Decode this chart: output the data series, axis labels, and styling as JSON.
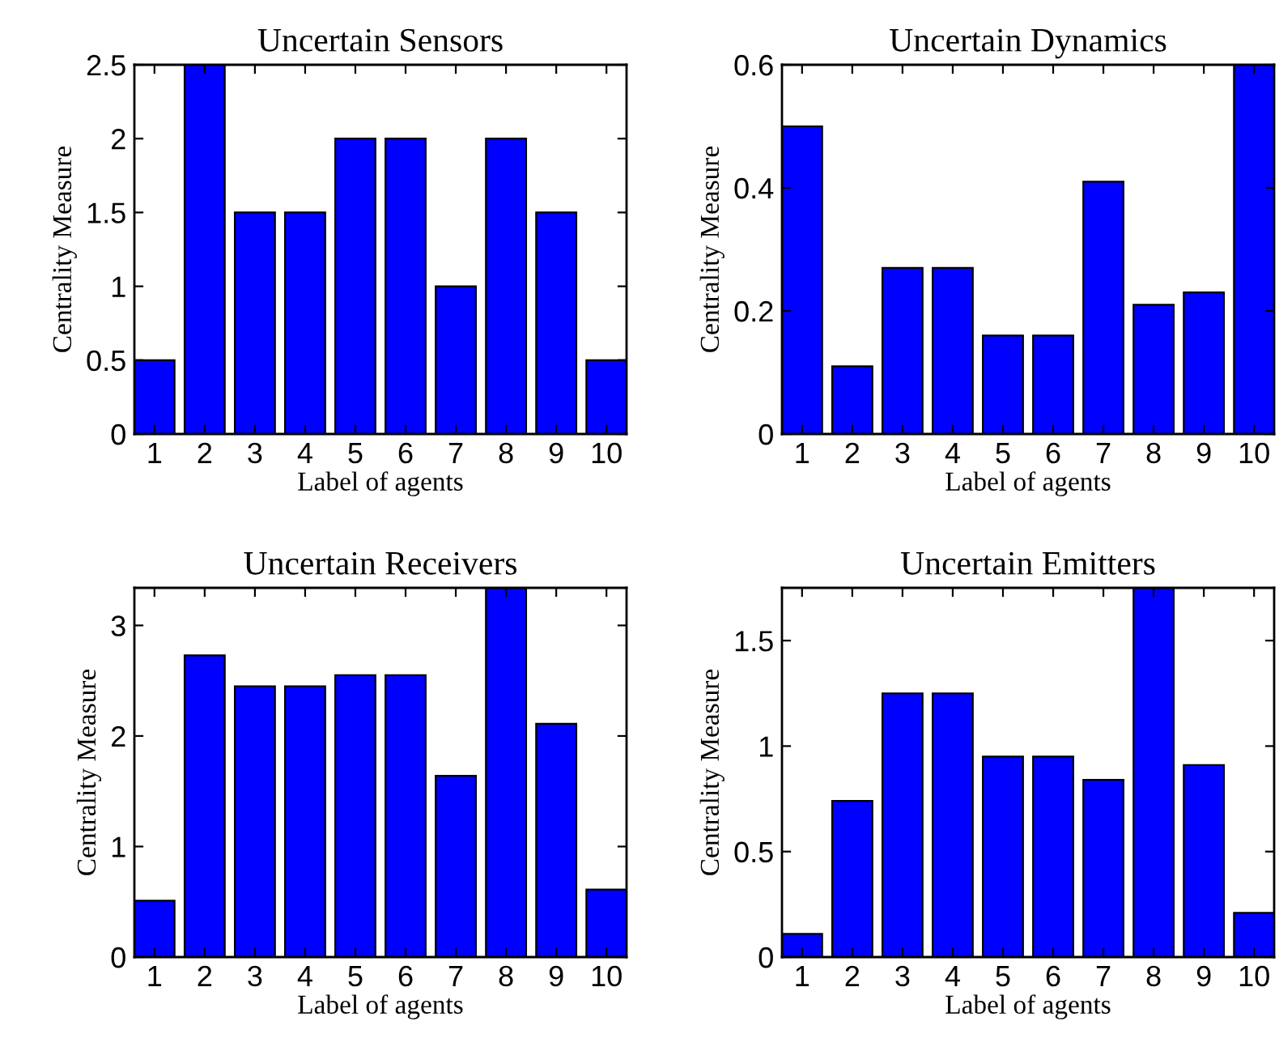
{
  "chart_data": [
    {
      "type": "bar",
      "title": "Uncertain Sensors",
      "xlabel": "Label of agents",
      "ylabel": "Centrality Measure",
      "categories": [
        "1",
        "2",
        "3",
        "4",
        "5",
        "6",
        "7",
        "8",
        "9",
        "10"
      ],
      "values": [
        0.5,
        2.5,
        1.5,
        1.5,
        2,
        2,
        1,
        2,
        1.5,
        0.5
      ],
      "color": "#0000ff",
      "ylim": [
        0,
        2.5
      ],
      "yticks": [
        0,
        0.5,
        1,
        1.5,
        2,
        2.5
      ],
      "grid": false,
      "legend": false
    },
    {
      "type": "bar",
      "title": "Uncertain Dynamics",
      "xlabel": "Label of agents",
      "ylabel": "Centrality Measure",
      "categories": [
        "1",
        "2",
        "3",
        "4",
        "5",
        "6",
        "7",
        "8",
        "9",
        "10"
      ],
      "values": [
        0.5,
        0.11,
        0.27,
        0.27,
        0.16,
        0.16,
        0.41,
        0.21,
        0.23,
        0.6
      ],
      "color": "#0000ff",
      "ylim": [
        0,
        0.6
      ],
      "yticks": [
        0,
        0.2,
        0.4,
        0.6
      ],
      "grid": false,
      "legend": false
    },
    {
      "type": "bar",
      "title": "Uncertain Receivers",
      "xlabel": "Label of agents",
      "ylabel": "Centrality Measure",
      "categories": [
        "1",
        "2",
        "3",
        "4",
        "5",
        "6",
        "7",
        "8",
        "9",
        "10"
      ],
      "values": [
        0.51,
        2.73,
        2.45,
        2.45,
        2.55,
        2.55,
        1.64,
        3.34,
        2.11,
        0.61
      ],
      "color": "#0000ff",
      "ylim": [
        0,
        3.34
      ],
      "yticks": [
        0,
        1,
        2,
        3
      ],
      "grid": false,
      "legend": false
    },
    {
      "type": "bar",
      "title": "Uncertain Emitters",
      "xlabel": "Label of agents",
      "ylabel": "Centrality Measure",
      "categories": [
        "1",
        "2",
        "3",
        "4",
        "5",
        "6",
        "7",
        "8",
        "9",
        "10"
      ],
      "values": [
        0.11,
        0.74,
        1.25,
        1.25,
        0.95,
        0.95,
        0.84,
        1.75,
        0.91,
        0.21
      ],
      "color": "#0000ff",
      "ylim": [
        0,
        1.75
      ],
      "yticks": [
        0,
        0.5,
        1,
        1.5
      ],
      "grid": false,
      "legend": false
    }
  ]
}
